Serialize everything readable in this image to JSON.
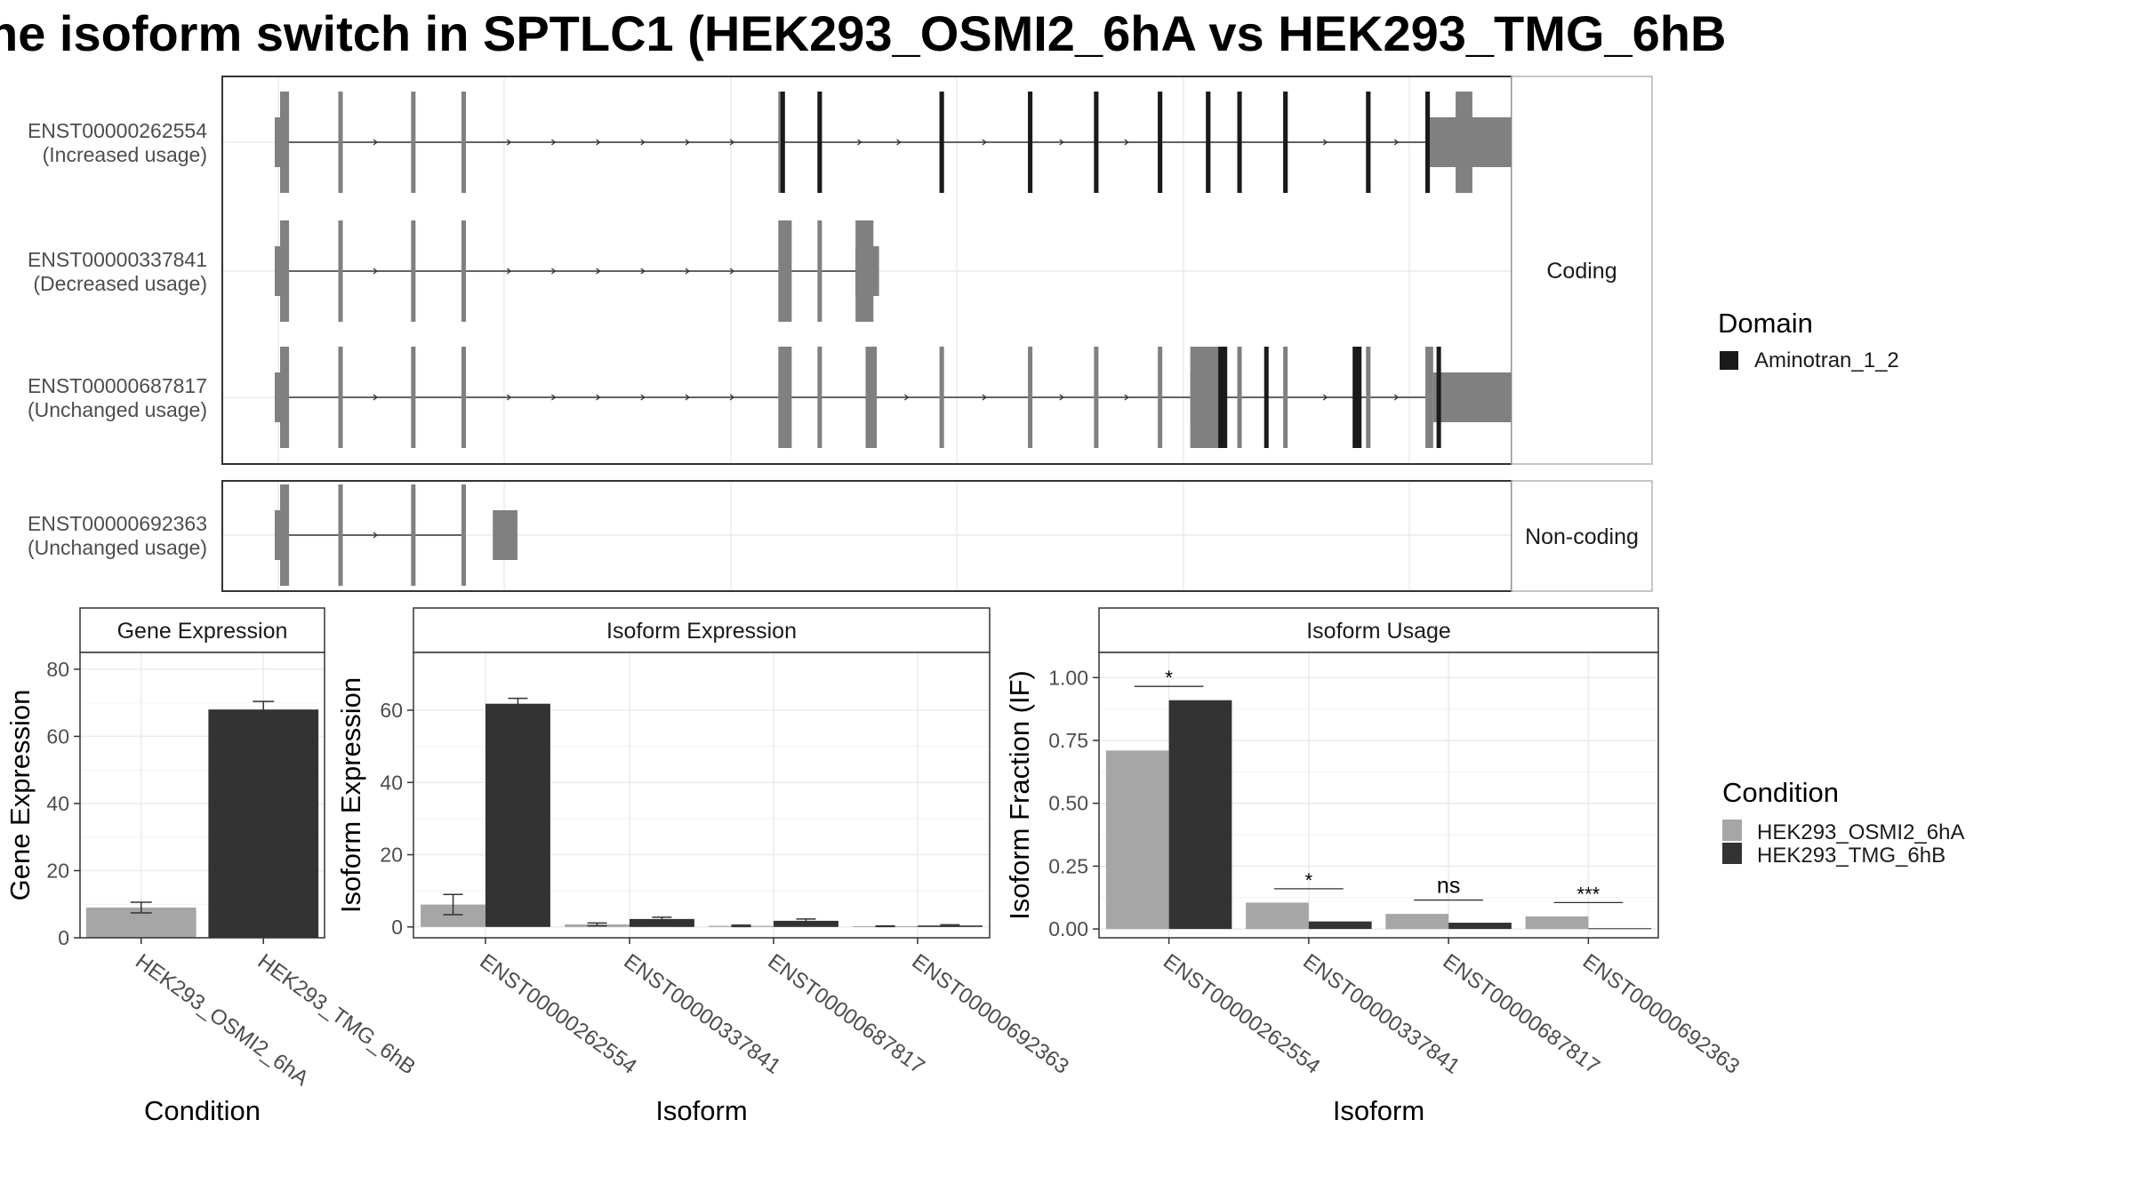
{
  "title": "ne isoform switch in SPTLC1 (HEK293_OSMI2_6hA vs HEK293_TMG_6hB",
  "colors": {
    "cond_a": "#a6a6a6",
    "cond_b": "#333333",
    "exon": "#808080",
    "domain": "#1a1a1a",
    "strip_fill": "#ffffff",
    "grid": "#ebebeb",
    "panel_border": "#333333"
  },
  "tracks": {
    "x_range": [
      0,
      1000
    ],
    "groups": [
      {
        "label": "Coding",
        "transcripts": [
          0,
          1,
          2
        ]
      },
      {
        "label": "Non-coding",
        "transcripts": [
          3
        ]
      }
    ],
    "transcripts": [
      {
        "id": "ENST00000262554",
        "usage": "(Increased usage)",
        "exons": [
          [
            0,
            8
          ],
          [
            52,
            56
          ],
          [
            117,
            121
          ],
          [
            162,
            166
          ],
          [
            445,
            450
          ],
          [
            480,
            484
          ],
          [
            589,
            593
          ],
          [
            668,
            672
          ],
          [
            727,
            731
          ],
          [
            784,
            788
          ],
          [
            827,
            831
          ],
          [
            855,
            859
          ],
          [
            896,
            900
          ],
          [
            970,
            974
          ],
          [
            1023,
            1027
          ],
          [
            1050,
            1065
          ]
        ],
        "utr5": [
          [
            0,
            8
          ],
          [
            52,
            56
          ],
          [
            117,
            121
          ],
          [
            162,
            166
          ],
          [
            445,
            447
          ]
        ],
        "utr3": [
          [
            1050,
            1065
          ]
        ],
        "thick_utr": [
          [
            1027,
            1100
          ]
        ],
        "domains": [
          [
            447,
            450
          ],
          [
            480,
            484
          ],
          [
            589,
            593
          ],
          [
            668,
            672
          ],
          [
            727,
            731
          ],
          [
            784,
            788
          ],
          [
            827,
            831
          ],
          [
            855,
            859
          ],
          [
            896,
            900
          ],
          [
            970,
            974
          ],
          [
            1023,
            1027
          ]
        ]
      },
      {
        "id": "ENST00000337841",
        "usage": "(Decreased usage)",
        "exons": [
          [
            0,
            8
          ],
          [
            52,
            56
          ],
          [
            117,
            121
          ],
          [
            162,
            166
          ],
          [
            445,
            457
          ],
          [
            480,
            484
          ],
          [
            514,
            530
          ]
        ],
        "utr5": [],
        "utr3": [
          [
            514,
            530
          ]
        ],
        "thick_utr": [
          [
            514,
            535
          ]
        ],
        "domains": []
      },
      {
        "id": "ENST00000687817",
        "usage": "(Unchanged usage)",
        "exons": [
          [
            0,
            8
          ],
          [
            52,
            56
          ],
          [
            117,
            121
          ],
          [
            162,
            166
          ],
          [
            445,
            457
          ],
          [
            480,
            484
          ],
          [
            523,
            533
          ],
          [
            589,
            593
          ],
          [
            668,
            672
          ],
          [
            727,
            731
          ],
          [
            784,
            788
          ],
          [
            813,
            843
          ],
          [
            855,
            859
          ],
          [
            896,
            900
          ],
          [
            970,
            974
          ],
          [
            1023,
            1030
          ]
        ],
        "utr5": [
          [
            813,
            838
          ]
        ],
        "utr3": [
          [
            1030,
            1100
          ]
        ],
        "thick_utr": [
          [
            813,
            838
          ],
          [
            1030,
            1100
          ]
        ],
        "domains": [
          [
            838,
            846
          ],
          [
            879,
            883
          ],
          [
            958,
            966
          ],
          [
            1033,
            1036
          ]
        ]
      },
      {
        "id": "ENST00000692363",
        "usage": "(Unchanged usage)",
        "exons": [
          [
            0,
            8
          ],
          [
            52,
            56
          ],
          [
            117,
            121
          ],
          [
            162,
            166
          ]
        ],
        "utr5": [],
        "utr3": [
          [
            190,
            210
          ]
        ],
        "thick_utr": [
          [
            190,
            212
          ]
        ],
        "domains": []
      }
    ],
    "legend_title": "Domain",
    "legend_items": [
      {
        "label": "Aminotran_1_2"
      }
    ]
  },
  "chart_data": [
    {
      "type": "bar",
      "title": "Gene Expression",
      "xlabel": "Condition",
      "ylabel": "Gene Expression",
      "categories": [
        "HEK293_OSMI2_6hA",
        "HEK293_TMG_6hB"
      ],
      "values": [
        9,
        68
      ],
      "errors": [
        1.6,
        2.4
      ],
      "ylim": [
        0,
        85
      ],
      "yticks": [
        0,
        20,
        40,
        60,
        80
      ]
    },
    {
      "type": "bar",
      "title": "Isoform Expression",
      "xlabel": "Isoform",
      "ylabel": "Isoform Expression",
      "categories": [
        "ENST00000262554",
        "ENST00000337841",
        "ENST00000687817",
        "ENST00000692363"
      ],
      "series": [
        {
          "name": "HEK293_OSMI2_6hA",
          "values": [
            6.2,
            0.7,
            0.3,
            0.2
          ],
          "errors": [
            2.8,
            0.4,
            0.2,
            0.1
          ]
        },
        {
          "name": "HEK293_TMG_6hB",
          "values": [
            61.8,
            2.2,
            1.7,
            0.4
          ],
          "errors": [
            1.5,
            0.5,
            0.5,
            0.2
          ]
        }
      ],
      "ylim": [
        -3,
        76
      ],
      "yticks": [
        0,
        20,
        40,
        60
      ]
    },
    {
      "type": "bar",
      "title": "Isoform Usage",
      "xlabel": "Isoform",
      "ylabel": "Isoform Fraction (IF)",
      "categories": [
        "ENST00000262554",
        "ENST00000337841",
        "ENST00000687817",
        "ENST00000692363"
      ],
      "series": [
        {
          "name": "HEK293_OSMI2_6hA",
          "values": [
            0.71,
            0.105,
            0.06,
            0.05
          ]
        },
        {
          "name": "HEK293_TMG_6hB",
          "values": [
            0.91,
            0.03,
            0.025,
            0.003
          ]
        }
      ],
      "significance": [
        "*",
        "*",
        "ns",
        "***"
      ],
      "ylim": [
        -0.035,
        1.1
      ],
      "yticks": [
        0.0,
        0.25,
        0.5,
        0.75,
        1.0
      ],
      "ytick_labels": [
        "0.00",
        "0.25",
        "0.50",
        "0.75",
        "1.00"
      ]
    }
  ],
  "condition_legend": {
    "title": "Condition",
    "items": [
      {
        "label": "HEK293_OSMI2_6hA",
        "color": "#a6a6a6"
      },
      {
        "label": "HEK293_TMG_6hB",
        "color": "#333333"
      }
    ]
  }
}
